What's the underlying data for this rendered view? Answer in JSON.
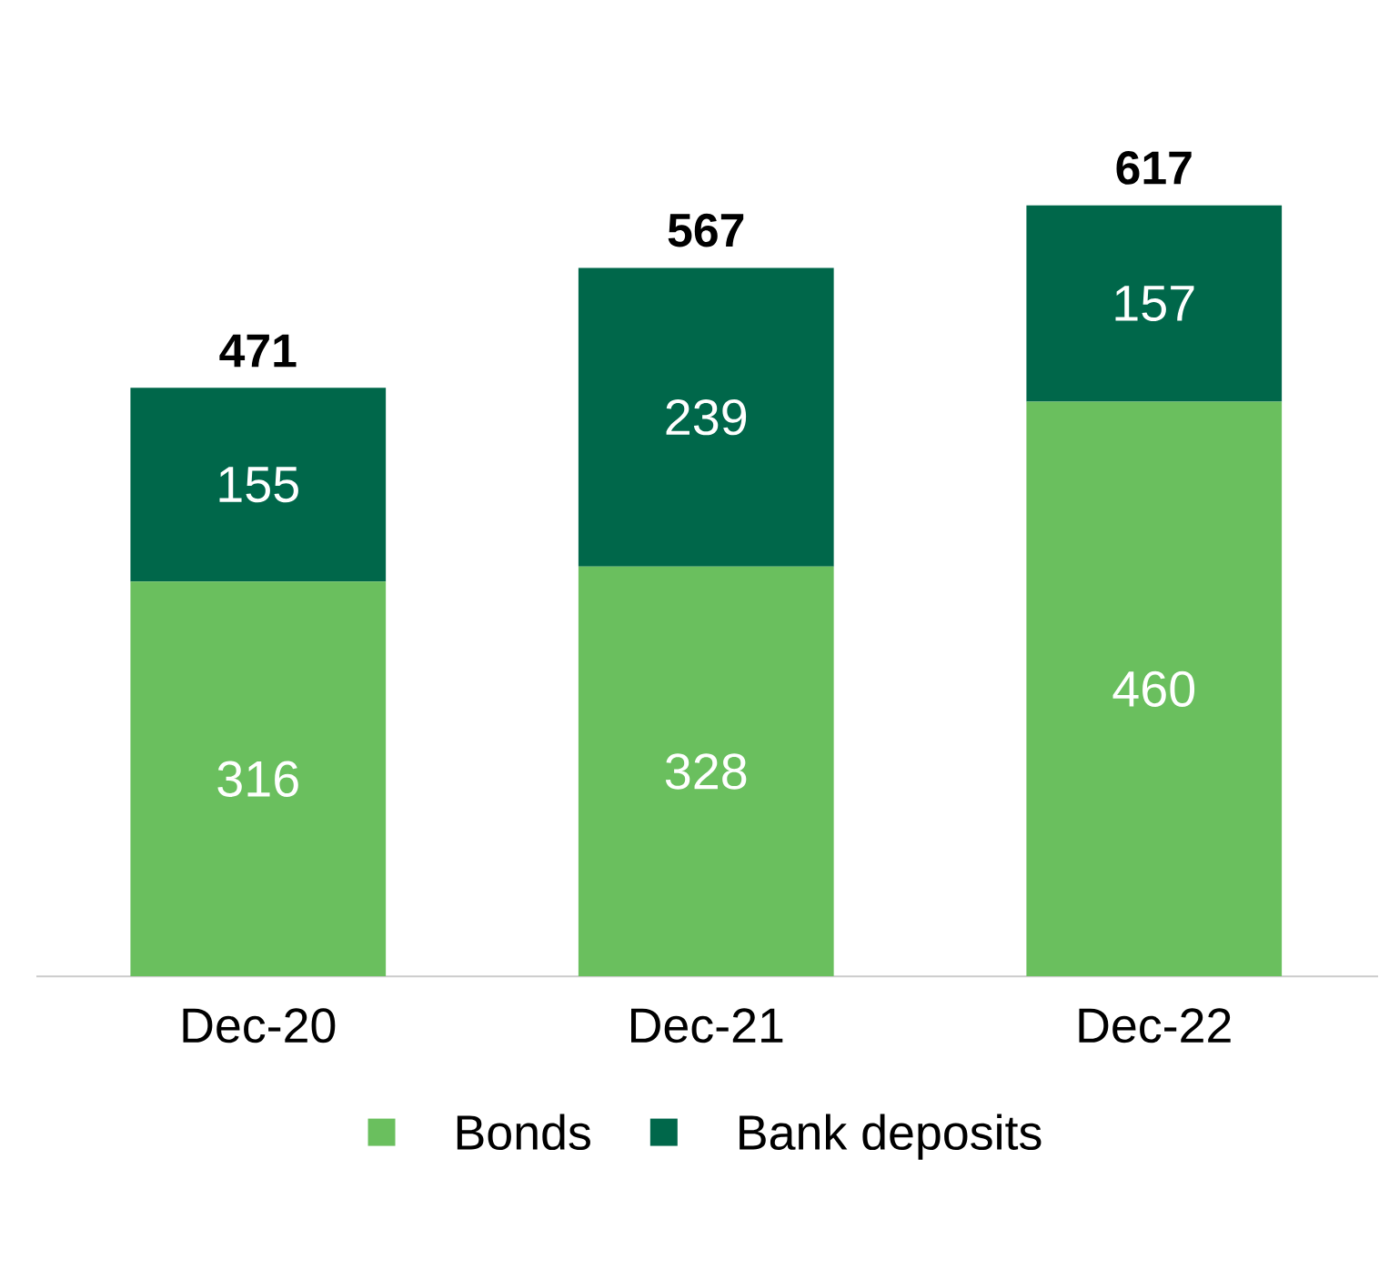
{
  "chart_data": {
    "type": "bar",
    "stacked": true,
    "categories": [
      "Dec-20",
      "Dec-21",
      "Dec-22"
    ],
    "series": [
      {
        "name": "Bonds",
        "color": "#6abf5e",
        "values": [
          316,
          328,
          460
        ]
      },
      {
        "name": "Bank deposits",
        "color": "#00674a",
        "values": [
          155,
          239,
          157
        ]
      }
    ],
    "totals": [
      "471",
      "567",
      "617"
    ],
    "data_labels": true,
    "legend": "bottom"
  }
}
